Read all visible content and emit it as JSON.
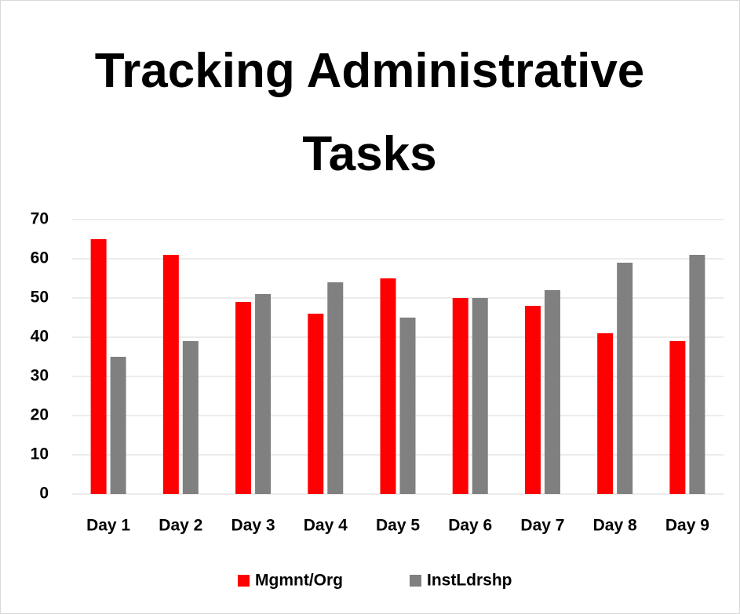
{
  "chart_data": {
    "type": "bar",
    "title": "Tracking Administrative Tasks",
    "categories": [
      "Day 1",
      "Day 2",
      "Day 3",
      "Day 4",
      "Day 5",
      "Day 6",
      "Day 7",
      "Day 8",
      "Day 9"
    ],
    "series": [
      {
        "name": "Mgmnt/Org",
        "color": "#ff0000",
        "values": [
          65,
          61,
          49,
          46,
          55,
          50,
          48,
          41,
          39
        ]
      },
      {
        "name": "InstLdrshp",
        "color": "#808080",
        "values": [
          35,
          39,
          51,
          54,
          45,
          50,
          52,
          59,
          61
        ]
      }
    ],
    "ylim": [
      0,
      70
    ],
    "yticks": [
      0,
      10,
      20,
      30,
      40,
      50,
      60,
      70
    ],
    "grid": true,
    "legend": "bottom"
  }
}
